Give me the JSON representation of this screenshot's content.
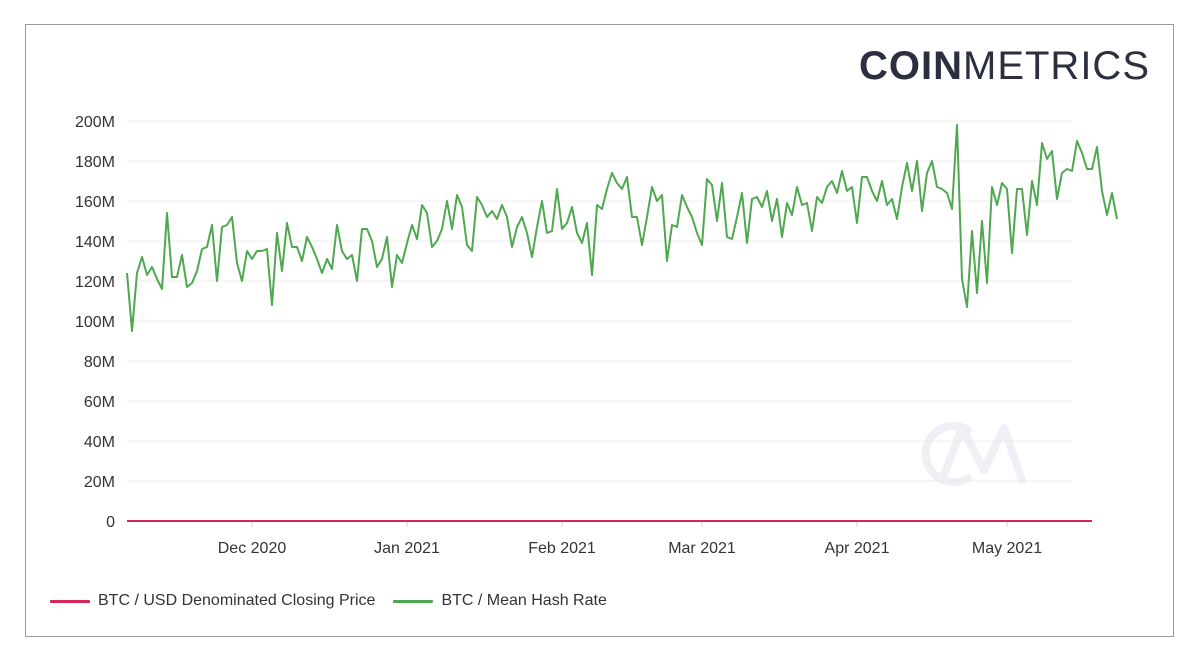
{
  "brand": {
    "bold": "COIN",
    "light": "METRICS"
  },
  "watermark": "CM",
  "chart_data": {
    "type": "line",
    "title": "",
    "xlabel": "",
    "ylabel": "",
    "ylim": [
      0,
      200
    ],
    "y_unit": "M",
    "y_ticks": [
      "0",
      "20M",
      "40M",
      "60M",
      "80M",
      "100M",
      "120M",
      "140M",
      "160M",
      "180M",
      "200M"
    ],
    "x_range": [
      "2020-11-06",
      "2021-05-14"
    ],
    "x_ticks": [
      {
        "label": "Dec 2020",
        "date": "2020-12-01"
      },
      {
        "label": "Jan 2021",
        "date": "2021-01-01"
      },
      {
        "label": "Feb 2021",
        "date": "2021-02-01"
      },
      {
        "label": "Mar 2021",
        "date": "2021-03-01"
      },
      {
        "label": "Apr 2021",
        "date": "2021-04-01"
      },
      {
        "label": "May 2021",
        "date": "2021-05-01"
      }
    ],
    "grid": true,
    "legend_position": "bottom-left",
    "series": [
      {
        "name": "BTC / USD Denominated Closing Price",
        "color": "#d6265a",
        "start": "2020-11-06",
        "step_days": 1,
        "values": [
          2e-05,
          2e-05,
          2e-05,
          2e-05,
          2e-05,
          2e-05,
          2e-05,
          2e-05,
          2e-05,
          2e-05,
          2e-05,
          2e-05,
          2e-05,
          2e-05,
          2e-05,
          2e-05,
          2e-05,
          2e-05,
          2e-05,
          2e-05,
          2e-05,
          2e-05,
          2e-05,
          2e-05,
          2e-05,
          2e-05,
          2e-05,
          2e-05,
          2e-05,
          2e-05,
          2e-05,
          2e-05,
          2e-05,
          2e-05,
          2e-05,
          2e-05,
          2e-05,
          2e-05,
          2e-05,
          2e-05,
          2e-05,
          2e-05,
          2e-05,
          2e-05,
          2e-05,
          2e-05,
          2e-05,
          2e-05,
          2e-05,
          2e-05,
          3e-05,
          3e-05,
          3e-05,
          3e-05,
          3e-05,
          3e-05,
          3e-05,
          3e-05,
          3e-05,
          3e-05,
          3e-05,
          3e-05,
          3e-05,
          3e-05,
          3e-05,
          3e-05,
          3e-05,
          3e-05,
          3e-05,
          3e-05,
          3e-05,
          3e-05,
          3e-05,
          3e-05,
          3e-05,
          3e-05,
          3e-05,
          3e-05,
          3e-05,
          3e-05,
          3e-05,
          3e-05,
          3e-05,
          3e-05,
          3e-05,
          4e-05,
          4e-05,
          4e-05,
          4e-05,
          4e-05,
          4e-05,
          4e-05,
          4e-05,
          4e-05,
          4e-05,
          4e-05,
          4e-05,
          4e-05,
          4e-05,
          4e-05,
          4e-05,
          4e-05,
          5e-05,
          5e-05,
          5e-05,
          5e-05,
          5e-05,
          5e-05,
          5e-05,
          5e-05,
          5e-05,
          5e-05,
          5e-05,
          5e-05,
          5e-05,
          5e-05,
          5e-05,
          5e-05,
          5e-05,
          5e-05,
          5e-05,
          5e-05,
          5e-05,
          5e-05,
          5e-05,
          5e-05,
          5e-05,
          5e-05,
          5e-05,
          5e-05,
          5e-05,
          5e-05,
          5e-05,
          5e-05,
          5e-05,
          5e-05,
          5e-05,
          5e-05,
          5e-05,
          5e-05,
          5e-05,
          5e-05,
          5e-05,
          5e-05,
          5e-05,
          5e-05,
          5e-05,
          5e-05,
          5e-05,
          5e-05,
          5e-05,
          5e-05,
          5e-05,
          5e-05,
          5e-05,
          5e-05,
          5e-05,
          5e-05,
          6e-05,
          6e-05,
          6e-05,
          6e-05,
          6e-05,
          6e-05,
          6e-05,
          6e-05,
          6e-05,
          6e-05,
          6e-05,
          6e-05,
          6e-05,
          6e-05,
          6e-05,
          6e-05,
          6e-05,
          6e-05,
          6e-05,
          6e-05,
          6e-05,
          6e-05,
          6e-05,
          6e-05,
          6e-05,
          6e-05,
          6e-05,
          6e-05,
          6e-05,
          6e-05,
          6e-05,
          6e-05,
          6e-05,
          6e-05,
          6e-05,
          6e-05
        ]
      },
      {
        "name": "BTC / Mean Hash Rate",
        "color": "#4fa84f",
        "start": "2020-11-06",
        "step_days": 1,
        "values": [
          124,
          95,
          124,
          132,
          123,
          127,
          121,
          116,
          154,
          122,
          122,
          133,
          117,
          119,
          125,
          136,
          137,
          148,
          120,
          147,
          148,
          152,
          129,
          120,
          135,
          131,
          135,
          135,
          136,
          108,
          144,
          125,
          149,
          137,
          137,
          130,
          142,
          137,
          131,
          124,
          131,
          126,
          148,
          135,
          131,
          133,
          120,
          146,
          146,
          140,
          127,
          131,
          142,
          117,
          133,
          129,
          139,
          148,
          141,
          158,
          154,
          137,
          140,
          146,
          160,
          146,
          163,
          157,
          138,
          135,
          162,
          158,
          152,
          155,
          151,
          158,
          152,
          137,
          147,
          152,
          144,
          132,
          147,
          160,
          144,
          145,
          166,
          146,
          149,
          157,
          144,
          139,
          149,
          123,
          158,
          156,
          166,
          174,
          169,
          166,
          172,
          152,
          152,
          138,
          152,
          167,
          160,
          163,
          130,
          148,
          147,
          163,
          157,
          152,
          144,
          138,
          171,
          168,
          150,
          169,
          142,
          141,
          152,
          164,
          139,
          161,
          162,
          157,
          165,
          150,
          161,
          142,
          159,
          153,
          167,
          158,
          159,
          145,
          162,
          159,
          167,
          170,
          164,
          175,
          165,
          167,
          149,
          172,
          172,
          165,
          160,
          170,
          158,
          161,
          151,
          167,
          179,
          165,
          180,
          155,
          174,
          180,
          167,
          166,
          164,
          156,
          198,
          121,
          107,
          145,
          114,
          150,
          119,
          167,
          158,
          169,
          166,
          134,
          166,
          166,
          143,
          170,
          158,
          189,
          181,
          185,
          161,
          174,
          176,
          175,
          190,
          184,
          176,
          176,
          187,
          165,
          153,
          164,
          151
        ]
      }
    ]
  }
}
